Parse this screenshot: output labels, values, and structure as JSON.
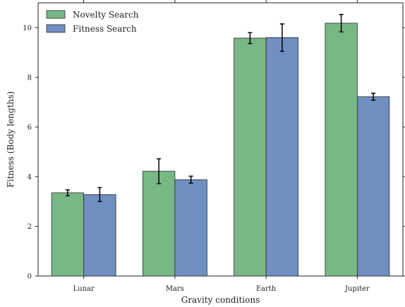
{
  "chart_data": {
    "type": "bar",
    "categories": [
      "Lunar",
      "Mars",
      "Earth",
      "Jupiter"
    ],
    "series": [
      {
        "name": "Novelty Search",
        "color": "#77b886",
        "values": [
          3.35,
          4.22,
          9.58,
          10.18
        ],
        "errors": [
          0.12,
          0.5,
          0.22,
          0.35
        ]
      },
      {
        "name": "Fitness Search",
        "color": "#6f8fc1",
        "values": [
          3.28,
          3.88,
          9.6,
          7.22
        ],
        "errors": [
          0.28,
          0.14,
          0.55,
          0.14
        ]
      }
    ],
    "xlabel": "Gravity conditions",
    "ylabel": "Fitness (Body lengths)",
    "ylim": [
      0,
      11
    ],
    "yticks": [
      "0",
      "2",
      "4",
      "6",
      "8",
      "10"
    ],
    "grid": false,
    "legend_position": "top-left"
  }
}
